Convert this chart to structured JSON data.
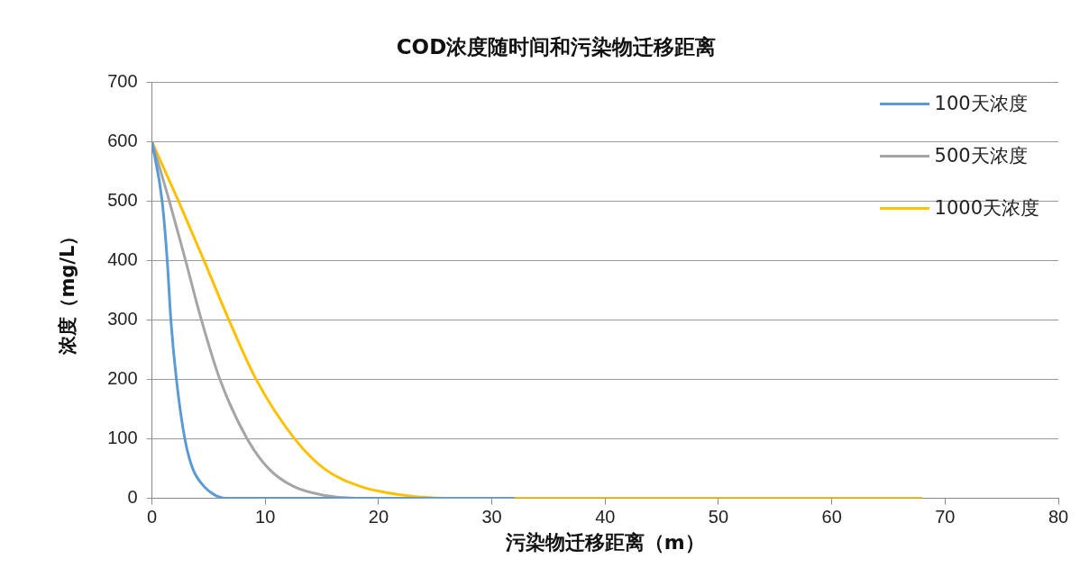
{
  "chart_data": {
    "type": "line",
    "title": "COD浓度随时间和污染物迁移距离",
    "xlabel": "污染物迁移距离（m）",
    "ylabel": "浓度（mg/L）",
    "xlim": [
      0,
      80
    ],
    "xticks": [
      0,
      10,
      20,
      30,
      40,
      50,
      60,
      70,
      80
    ],
    "ylim": [
      0,
      700
    ],
    "yticks": [
      0,
      100,
      200,
      300,
      400,
      500,
      600,
      700
    ],
    "grid": "y",
    "legend": "top right",
    "marker": "none",
    "line_style": "solid",
    "series": [
      {
        "name": "100天浓度",
        "color": "#5b9bd5",
        "x": [
          0,
          0.9,
          1.35,
          1.67,
          2.16,
          2.9,
          3.6,
          4.6,
          5.5,
          6.5,
          10,
          20,
          32
        ],
        "values": [
          600,
          500,
          400,
          300,
          200,
          100,
          50,
          20,
          6,
          0,
          0,
          0,
          0
        ]
      },
      {
        "name": "500天浓度",
        "color": "#a5a5a5",
        "x": [
          0,
          1.54,
          2.97,
          4.37,
          6,
          8.4,
          10.3,
          12.5,
          15.2,
          18,
          25,
          32
        ],
        "values": [
          600,
          500,
          400,
          300,
          200,
          100,
          50,
          20,
          5,
          0,
          0,
          0
        ]
      },
      {
        "name": "1000天浓度",
        "color": "#ffc000",
        "x": [
          0,
          2.35,
          4.6,
          6.8,
          9.2,
          12.6,
          15.2,
          18.4,
          20.6,
          23.2,
          27,
          40,
          55,
          68
        ],
        "values": [
          600,
          500,
          400,
          300,
          200,
          100,
          50,
          20,
          10,
          3,
          0,
          0,
          0,
          0
        ]
      }
    ]
  }
}
